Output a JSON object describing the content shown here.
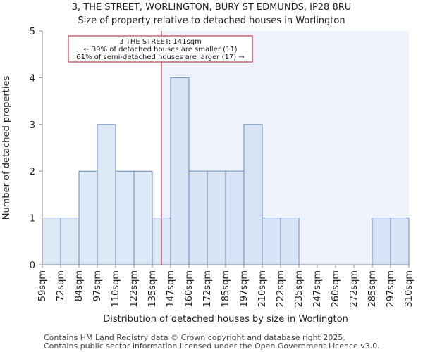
{
  "chart_data": {
    "type": "bar",
    "title_lines": [
      "3, THE STREET, WORLINGTON, BURY ST EDMUNDS, IP28 8RU",
      "Size of property relative to detached houses in Worlington"
    ],
    "xlabel": "Distribution of detached houses by size in Worlington",
    "ylabel": "Number of detached properties",
    "x_tick_labels": [
      "59sqm",
      "72sqm",
      "84sqm",
      "97sqm",
      "110sqm",
      "122sqm",
      "135sqm",
      "147sqm",
      "160sqm",
      "172sqm",
      "185sqm",
      "197sqm",
      "210sqm",
      "222sqm",
      "235sqm",
      "247sqm",
      "260sqm",
      "272sqm",
      "285sqm",
      "297sqm",
      "310sqm"
    ],
    "values": [
      1,
      1,
      2,
      3,
      2,
      2,
      1,
      4,
      2,
      2,
      2,
      3,
      1,
      1,
      0,
      0,
      0,
      0,
      1,
      1
    ],
    "ylim": [
      0,
      5
    ],
    "y_ticks": [
      0,
      1,
      2,
      3,
      4,
      5
    ],
    "marker_value_sqm": 141,
    "annotation_lines": [
      "3 THE STREET: 141sqm",
      "← 39% of detached houses are smaller (11)",
      "61% of semi-detached houses are larger (17) →"
    ],
    "colors": {
      "bar_left": "#dce8f6",
      "bar_right": "#d7e4f5",
      "bar_edge": "#6b88b6",
      "highlight_bg": "#eef3fb",
      "marker": "#b2182b",
      "annot_border": "#b2182b",
      "axis": "#888888"
    },
    "footer_lines": [
      "Contains HM Land Registry data © Crown copyright and database right 2025.",
      "Contains public sector information licensed under the Open Government Licence v3.0."
    ]
  }
}
